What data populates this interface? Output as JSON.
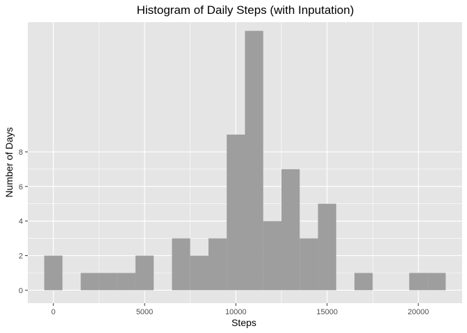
{
  "chart_data": {
    "type": "bar",
    "title": "Histogram of Daily Steps (with Inputation)",
    "xlabel": "Steps",
    "ylabel": "Number of Days",
    "bin_width": 1000,
    "bins": [
      {
        "x0": -500,
        "x1": 500,
        "count": 2
      },
      {
        "x0": 500,
        "x1": 1500,
        "count": 0
      },
      {
        "x0": 1500,
        "x1": 2500,
        "count": 1
      },
      {
        "x0": 2500,
        "x1": 3500,
        "count": 1
      },
      {
        "x0": 3500,
        "x1": 4500,
        "count": 1
      },
      {
        "x0": 4500,
        "x1": 5500,
        "count": 2
      },
      {
        "x0": 5500,
        "x1": 6500,
        "count": 0
      },
      {
        "x0": 6500,
        "x1": 7500,
        "count": 3
      },
      {
        "x0": 7500,
        "x1": 8500,
        "count": 2
      },
      {
        "x0": 8500,
        "x1": 9500,
        "count": 3
      },
      {
        "x0": 9500,
        "x1": 10500,
        "count": 9
      },
      {
        "x0": 10500,
        "x1": 11500,
        "count": 15
      },
      {
        "x0": 11500,
        "x1": 12500,
        "count": 4
      },
      {
        "x0": 12500,
        "x1": 13500,
        "count": 7
      },
      {
        "x0": 13500,
        "x1": 14500,
        "count": 3
      },
      {
        "x0": 14500,
        "x1": 15500,
        "count": 5
      },
      {
        "x0": 15500,
        "x1": 16500,
        "count": 0
      },
      {
        "x0": 16500,
        "x1": 17500,
        "count": 1
      },
      {
        "x0": 17500,
        "x1": 18500,
        "count": 0
      },
      {
        "x0": 18500,
        "x1": 19500,
        "count": 0
      },
      {
        "x0": 19500,
        "x1": 20500,
        "count": 1
      },
      {
        "x0": 20500,
        "x1": 21500,
        "count": 1
      }
    ],
    "x_ticks": [
      0,
      5000,
      10000,
      15000,
      20000
    ],
    "x_tick_labels": [
      "0",
      "5000",
      "10000",
      "15000",
      "20000"
    ],
    "y_ticks": [
      0,
      2,
      4,
      6,
      8
    ],
    "y_tick_labels": [
      "0",
      "2",
      "4",
      "6",
      "8"
    ],
    "xlim": [
      -1400,
      22400
    ],
    "ylim": [
      -0.75,
      15.5
    ],
    "grid": true,
    "colors": {
      "panel_background": "#e5e5e5",
      "grid_major": "#ffffff",
      "bar_fill": "#9e9e9e"
    }
  }
}
